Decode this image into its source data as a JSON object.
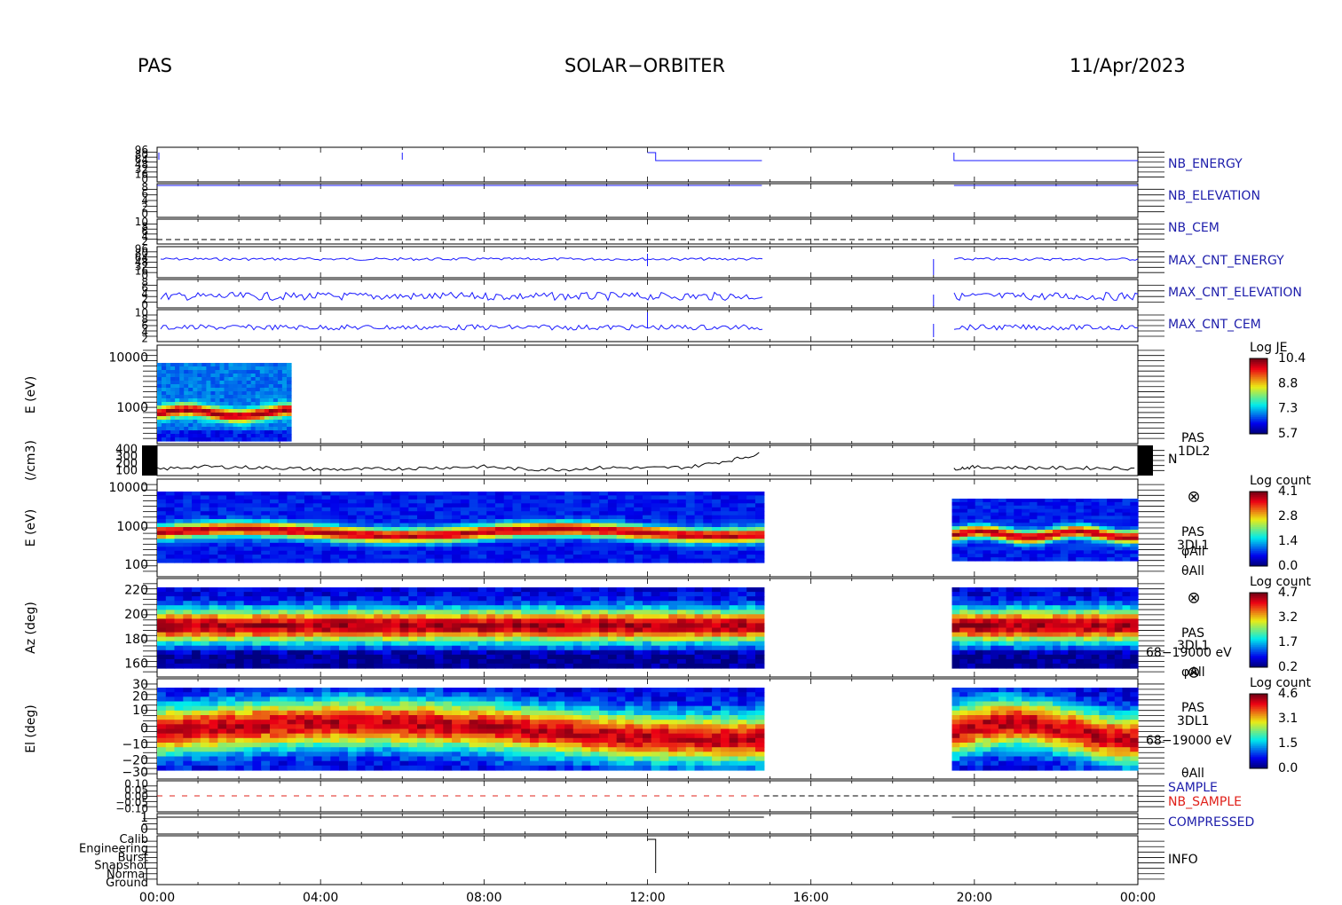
{
  "header": {
    "left": "PAS",
    "center": "SOLAR−ORBITER",
    "right": "11/Apr/2023"
  },
  "chart_data": {
    "type": "heatmap",
    "x_axis": {
      "range": [
        "00:00",
        "24:00"
      ],
      "ticks": [
        "00:00",
        "04:00",
        "08:00",
        "12:00",
        "16:00",
        "20:00",
        "00:00"
      ]
    },
    "data_gap_hours": [
      [
        14.85,
        19.45
      ]
    ],
    "panels": [
      {
        "id": "nb_energy",
        "label": "NB_ENERGY",
        "label_color": "#1d1dab",
        "yticks": [
          "96",
          "80",
          "64",
          "48",
          "32",
          "16",
          "0"
        ]
      },
      {
        "id": "nb_elevation",
        "label": "NB_ELEVATION",
        "label_color": "#1d1dab",
        "yticks": [
          "8",
          "6",
          "4",
          "2",
          "0"
        ]
      },
      {
        "id": "nb_cem",
        "label": "NB_CEM",
        "label_color": "#1d1dab",
        "yticks": [
          "10",
          "8",
          "6",
          "4",
          "2"
        ]
      },
      {
        "id": "max_cnt_energy",
        "label": "MAX_CNT_ENERGY",
        "label_color": "#1d1dab",
        "yticks": [
          "96",
          "80",
          "64",
          "48",
          "32",
          "16",
          "0"
        ]
      },
      {
        "id": "max_cnt_elevation",
        "label": "MAX_CNT_ELEVATION",
        "label_color": "#1d1dab",
        "yticks": [
          "8",
          "6",
          "4",
          "2",
          "0"
        ]
      },
      {
        "id": "max_cnt_cem",
        "label": "MAX_CNT_CEM",
        "label_color": "#1d1dab",
        "yticks": [
          "10",
          "8",
          "6",
          "4",
          "2"
        ]
      },
      {
        "id": "pas_1dl2",
        "ylabel": "E (eV)",
        "yscale": "log",
        "yticks": [
          "10000",
          "1000"
        ],
        "colorbar": {
          "title": "Log JE",
          "ticks": [
            "10.4",
            "8.8",
            "7.3",
            "5.7"
          ]
        }
      },
      {
        "id": "density",
        "ylabel": "(/cm3)",
        "yticks": [
          "400",
          "300",
          "200",
          "100"
        ],
        "labels": [
          "PAS",
          "1DL2",
          "N"
        ]
      },
      {
        "id": "pas_3dl1_energy",
        "ylabel": "E (eV)",
        "yscale": "log",
        "yticks": [
          "10000",
          "1000",
          "100"
        ],
        "labels": [
          "PAS",
          "3DL1",
          "φAll",
          "θAll"
        ],
        "colorbar": {
          "title": "Log count",
          "ticks": [
            "4.1",
            "2.8",
            "1.4",
            "0.0"
          ]
        }
      },
      {
        "id": "pas_3dl1_azimuth",
        "ylabel": "Az (deg)",
        "yticks": [
          "220",
          "200",
          "180",
          "160"
        ],
        "labels": [
          "PAS",
          "3DL1",
          "68−19000 eV",
          "φAll"
        ],
        "colorbar": {
          "title": "Log count",
          "ticks": [
            "4.7",
            "3.2",
            "1.7",
            "0.2"
          ]
        }
      },
      {
        "id": "pas_3dl1_elevation",
        "ylabel": "El (deg)",
        "yticks": [
          "30",
          "20",
          "10",
          "0",
          "−10",
          "−20",
          "−30"
        ],
        "labels": [
          "PAS",
          "3DL1",
          "68−19000 eV",
          "θAll"
        ],
        "colorbar": {
          "title": "Log count",
          "ticks": [
            "4.6",
            "3.1",
            "1.5",
            "0.0"
          ]
        }
      },
      {
        "id": "sample",
        "labels": [
          "SAMPLE",
          "NB_SAMPLE"
        ],
        "label_colors": [
          "#1d1dab",
          "#e0201a"
        ],
        "yticks": [
          "0.10",
          "0.05",
          "0.00",
          "−0.05",
          "−0.10"
        ]
      },
      {
        "id": "compressed",
        "label": "COMPRESSED",
        "label_color": "#1d1dab",
        "yticks": [
          "1",
          "0"
        ]
      },
      {
        "id": "info",
        "label": "INFO",
        "label_color": "#000000",
        "yticks": [
          "Calib",
          "Engineering",
          "Burst",
          "Snapshot",
          "Normal",
          "Ground"
        ]
      }
    ],
    "series": [
      {
        "name": "N",
        "panel": "density",
        "x_hours": [
          0,
          1,
          2,
          3,
          4,
          5,
          6,
          7,
          8,
          9,
          10,
          11,
          12,
          13,
          14,
          14.8,
          19.5,
          20,
          21,
          22,
          23,
          24
        ],
        "values": [
          150,
          180,
          175,
          165,
          150,
          150,
          160,
          170,
          180,
          150,
          150,
          170,
          165,
          175,
          250,
          330,
          160,
          175,
          170,
          165,
          165,
          160
        ]
      }
    ]
  }
}
